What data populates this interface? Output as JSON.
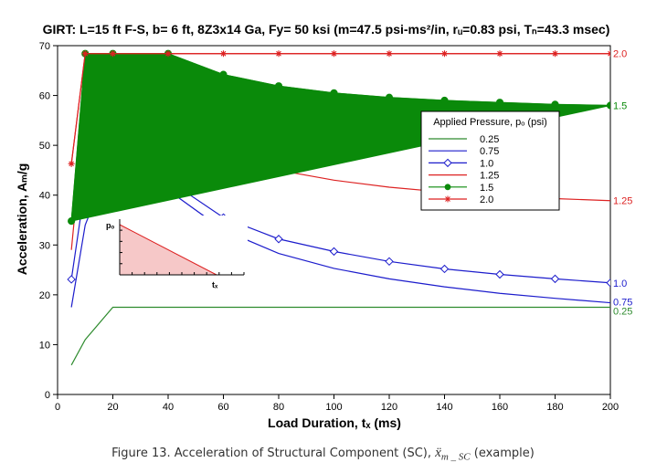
{
  "chart_data": {
    "type": "line",
    "title": "GIRT: L=15 ft F-S, b= 6 ft, 8Z3x14 Ga, Fy= 50 ksi (m=47.5 psi-ms²/in, rᵤ=0.83 psi, Tₙ=43.3 msec)",
    "xlabel": "Load Duration, tₓ (ms)",
    "ylabel": "Acceleration, Aₘ/g",
    "xlim": [
      0,
      200
    ],
    "ylim": [
      0,
      70
    ],
    "xticks": [
      0,
      20,
      40,
      60,
      80,
      100,
      120,
      140,
      160,
      180,
      200
    ],
    "yticks": [
      0,
      10,
      20,
      30,
      40,
      50,
      60,
      70
    ],
    "grid": false,
    "legend": {
      "title": "Applied Pressure, pₒ (psi)",
      "placement": "right"
    },
    "series": [
      {
        "name": "0.25",
        "color": "#2e8b2e",
        "marker": "none",
        "end_label": "0.25",
        "x": [
          5,
          10,
          20,
          40,
          60,
          80,
          100,
          120,
          140,
          160,
          180,
          200
        ],
        "y": [
          5.9,
          11.0,
          17.5,
          17.5,
          17.5,
          17.5,
          17.5,
          17.5,
          17.5,
          17.5,
          17.5,
          17.5
        ]
      },
      {
        "name": "0.75",
        "color": "#1c1ccc",
        "marker": "none",
        "end_label": "0.75",
        "x": [
          5,
          10,
          20,
          40,
          60,
          80,
          100,
          120,
          140,
          160,
          180,
          200
        ],
        "y": [
          17.5,
          34.0,
          48.0,
          41.0,
          33.0,
          28.3,
          25.3,
          23.2,
          21.6,
          20.3,
          19.3,
          18.4
        ]
      },
      {
        "name": "1.0",
        "color": "#1c1ccc",
        "marker": "diamond",
        "end_label": "1.0",
        "x": [
          5,
          10,
          20,
          40,
          60,
          80,
          100,
          120,
          140,
          160,
          180,
          200
        ],
        "y": [
          23.1,
          42.0,
          56.0,
          43.0,
          35.5,
          31.2,
          28.7,
          26.7,
          25.2,
          24.1,
          23.2,
          22.4
        ]
      },
      {
        "name": "1.25",
        "color": "#dd2222",
        "marker": "none",
        "end_label": "1.25",
        "x": [
          5,
          10,
          20,
          40,
          60,
          80,
          100,
          120,
          140,
          160,
          180,
          200
        ],
        "y": [
          29.0,
          58.0,
          64.0,
          55.0,
          48.5,
          45.0,
          43.0,
          41.6,
          40.6,
          39.8,
          39.3,
          38.9
        ]
      },
      {
        "name": "1.5",
        "color": "#0a8a0a",
        "marker": "circle",
        "end_label": "1.5",
        "x": [
          5,
          10,
          20,
          40,
          60,
          80,
          100,
          120,
          140,
          160,
          180,
          200
        ],
        "y": [
          34.8,
          68.4,
          68.4,
          68.4,
          64.2,
          61.9,
          60.5,
          59.6,
          59.0,
          58.6,
          58.2,
          58.0
        ]
      },
      {
        "name": "2.0",
        "color": "#dd2222",
        "marker": "asterisk",
        "end_label": "2.0",
        "x": [
          5,
          10,
          20,
          40,
          60,
          80,
          100,
          120,
          140,
          160,
          180,
          200
        ],
        "y": [
          46.3,
          68.4,
          68.4,
          68.4,
          68.4,
          68.4,
          68.4,
          68.4,
          68.4,
          68.4,
          68.4,
          68.4
        ]
      }
    ],
    "filled_region": {
      "color": "#0a8a0a",
      "upper": {
        "x": [
          5,
          10,
          20,
          40,
          60,
          80,
          100,
          120,
          140,
          160,
          180,
          200
        ],
        "y": [
          34.8,
          68.4,
          68.4,
          68.4,
          64.2,
          61.9,
          60.5,
          59.6,
          59.0,
          58.6,
          58.2,
          58.0
        ]
      },
      "lower": {
        "x": [
          5,
          200
        ],
        "y": [
          34.8,
          58.0
        ]
      }
    },
    "inset": {
      "description": "triangular pulse sketch",
      "label_peak": "pₒ",
      "label_duration": "tₓ",
      "fill_color": "#f6c8c8",
      "line_color": "#dd2222"
    }
  },
  "caption": {
    "text": "Figure 13. Acceleration of Structural Component (SC),",
    "math": "ẍ",
    "math_sub": "m _ SC",
    "suffix": "(example)"
  }
}
